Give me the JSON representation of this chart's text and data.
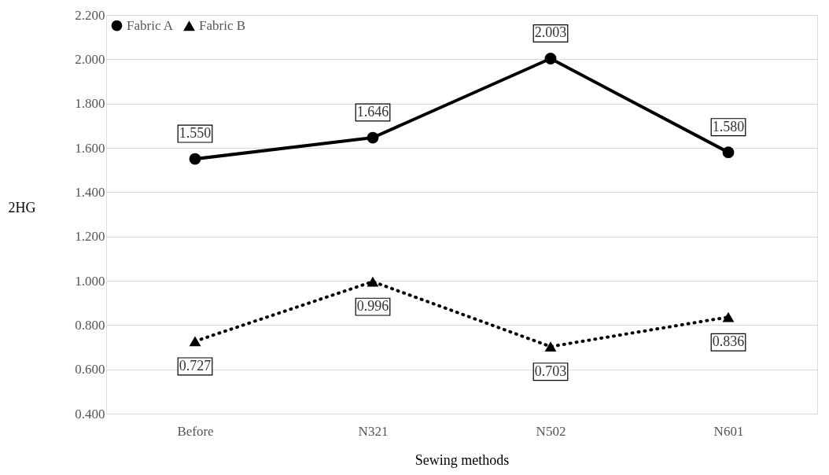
{
  "chart_data": {
    "type": "line",
    "xlabel": "Sewing methods",
    "ylabel": "2HG",
    "categories": [
      "Before",
      "N321",
      "N502",
      "N601"
    ],
    "series": [
      {
        "name": "Fabric A",
        "color": "#000000",
        "values": [
          1.55,
          1.646,
          2.003,
          1.58
        ],
        "value_labels": [
          "1.550",
          "1.646",
          "2.003",
          "1.580"
        ],
        "marker": "circle",
        "line_style": "solid"
      },
      {
        "name": "Fabric B",
        "color": "#000000",
        "values": [
          0.727,
          0.996,
          0.703,
          0.836
        ],
        "value_labels": [
          "0.727",
          "0.996",
          "0.703",
          "0.836"
        ],
        "marker": "triangle",
        "line_style": "dotted"
      }
    ],
    "ylim": [
      0.4,
      2.2
    ],
    "yticks": [
      {
        "value": 0.4,
        "label": "0.400"
      },
      {
        "value": 0.6,
        "label": "0.600"
      },
      {
        "value": 0.8,
        "label": "0.800"
      },
      {
        "value": 1.0,
        "label": "1.000"
      },
      {
        "value": 1.2,
        "label": "1.200"
      },
      {
        "value": 1.4,
        "label": "1.400"
      },
      {
        "value": 1.6,
        "label": "1.600"
      },
      {
        "value": 1.8,
        "label": "1.800"
      },
      {
        "value": 2.0,
        "label": "2.000"
      },
      {
        "value": 2.2,
        "label": "2.200"
      }
    ],
    "grid": "y",
    "legend": "top left"
  }
}
